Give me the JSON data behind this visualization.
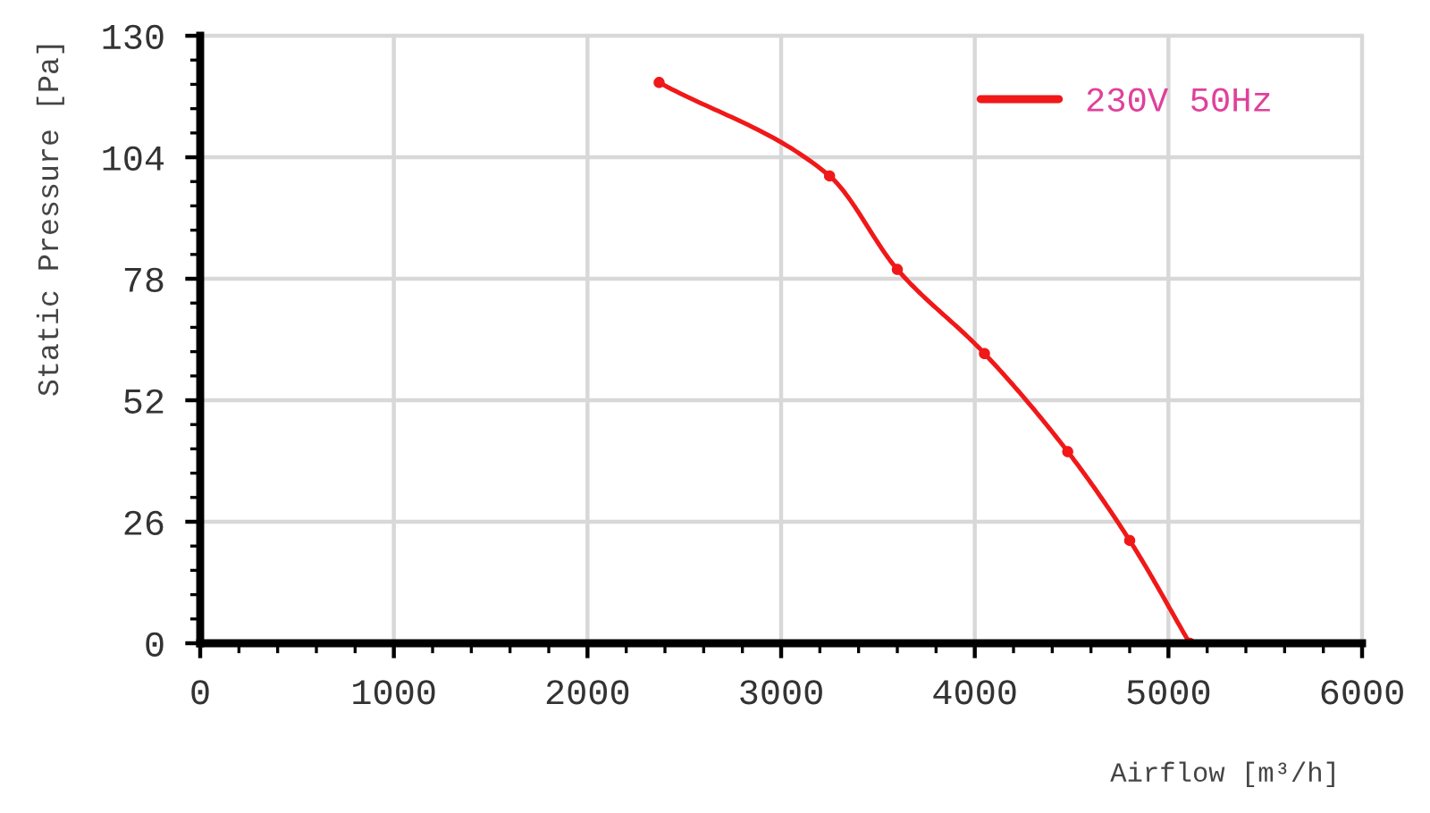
{
  "chart_data": {
    "type": "line",
    "xlabel": "Airflow [m³/h]",
    "ylabel": "Static Pressure [Pa]",
    "x": [
      2370,
      3250,
      3600,
      4050,
      4480,
      4800,
      5110
    ],
    "series": [
      {
        "name": "230V 50Hz",
        "color": "#f01818",
        "values": [
          120,
          100,
          80,
          62,
          41,
          22,
          0
        ]
      }
    ],
    "xlim": [
      0,
      6000
    ],
    "xticks": [
      0,
      1000,
      2000,
      3000,
      4000,
      5000,
      6000
    ],
    "ylim": [
      0,
      130
    ],
    "yticks": [
      0,
      26,
      52,
      78,
      104,
      130
    ],
    "grid": true,
    "legend": "top right",
    "marker": "circle",
    "line_style": "solid"
  }
}
